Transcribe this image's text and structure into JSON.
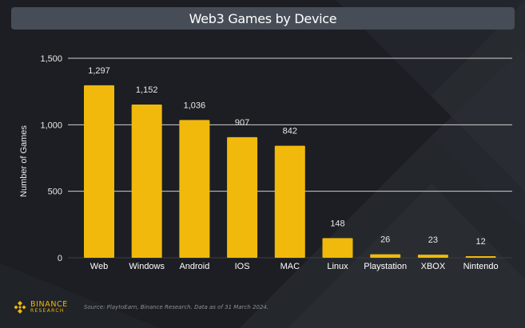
{
  "header": {
    "title": "Web3 Games by Device"
  },
  "chart_data": {
    "type": "bar",
    "title": "Web3 Games by Device",
    "xlabel": "",
    "ylabel": "Number of Games",
    "categories": [
      "Web",
      "Windows",
      "Android",
      "IOS",
      "MAC",
      "Linux",
      "Playstation",
      "XBOX",
      "Nintendo"
    ],
    "values": [
      1297,
      1152,
      1036,
      907,
      842,
      148,
      26,
      23,
      12
    ],
    "value_labels": [
      "1,297",
      "1,152",
      "1,036",
      "907",
      "842",
      "148",
      "26",
      "23",
      "12"
    ],
    "ylim": [
      0,
      1500
    ],
    "yticks": [
      0,
      500,
      1000,
      1500
    ],
    "ytick_labels": [
      "0",
      "500",
      "1,000",
      "1,500"
    ],
    "grid": true,
    "legend": "none",
    "bar_color": "#f0b90b"
  },
  "footer": {
    "logo_main": "BINANCE",
    "logo_sub": "RESEARCH",
    "source": "Source: PlaytoEarn, Binance Research. Data as of 31 March 2024."
  },
  "colors": {
    "background": "#1e2026",
    "title_bar": "#474d57",
    "accent": "#f0b90b",
    "gridline": "#d0d0d0"
  }
}
